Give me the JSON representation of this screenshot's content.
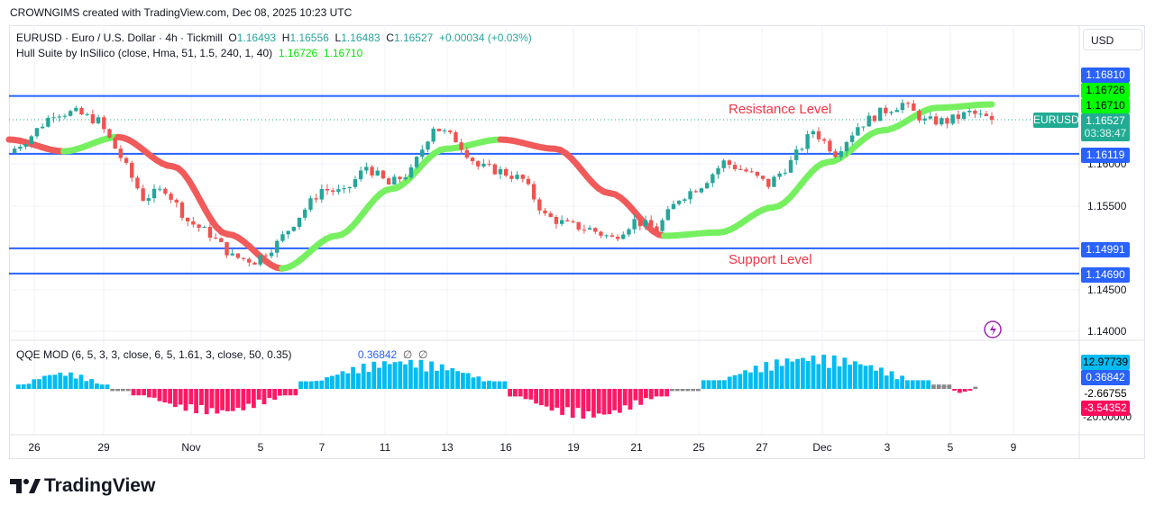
{
  "credit": "CROWNGIMS created with TradingView.com, Dec 08, 2025 10:23 UTC",
  "legend": {
    "symbol": "EURUSD · Euro / U.S. Dollar · 4h · Tickmill",
    "o_label": "O",
    "o": "1.16493",
    "h_label": "H",
    "h": "1.16556",
    "l_label": "L",
    "l": "1.16483",
    "c_label": "C",
    "c": "1.16527",
    "change": "+0.00034 (+0.03%)",
    "hull": "Hull Suite by InSilico (close, Hma, 51, 1.5, 240, 1, 40)",
    "hull_v1": "1.16726",
    "hull_v2": "1.16710"
  },
  "qqe": {
    "title": "QQE MOD (6, 5, 3, 3, close, 6, 5, 1.61, 3, close, 50, 0.35)",
    "value": "0.36842",
    "na1": "∅",
    "na2": "∅"
  },
  "currency": "USD",
  "annotations": {
    "resistance": "Resistance Level",
    "support": "Support Level"
  },
  "price_tags": {
    "r1": "1.16810",
    "hull1": "1.16726",
    "hull2": "1.16710",
    "symbol": "EURUSD",
    "last": "1.16527",
    "countdown": "03:38:47",
    "r2": "1.16119",
    "s1": "1.14991",
    "s2": "1.14690"
  },
  "price_axis": [
    "1.16000",
    "1.15500",
    "1.14500",
    "1.14000"
  ],
  "qqe_tags": {
    "a": "12.97739",
    "b": "0.36842",
    "c": "-2.66755",
    "d": "-3.54352",
    "e": "-20.00000"
  },
  "time_axis": [
    "26",
    "29",
    "Nov",
    "5",
    "7",
    "11",
    "13",
    "16",
    "19",
    "21",
    "25",
    "27",
    "Dec",
    "3",
    "5",
    "9"
  ],
  "brand": "TradingView",
  "colors": {
    "up": "#26a69a",
    "down": "#ef5350",
    "level": "#2962ff",
    "hull_up": "#76f060",
    "hull_down": "#f05a5a",
    "qqe_up": "#00bcf2",
    "qqe_down": "#ff1a66",
    "qqe_neutral": "#888888",
    "last": "#22ab94"
  },
  "chart_data": {
    "type": "candlestick",
    "symbol": "EURUSD",
    "timeframe": "4h",
    "ylim": [
      1.1385,
      1.1735
    ],
    "levels": [
      1.1681,
      1.16119,
      1.14991,
      1.1469
    ],
    "close_path": [
      1.1613,
      1.1634,
      1.1661,
      1.1661,
      1.1651,
      1.1608,
      1.1559,
      1.157,
      1.1532,
      1.1516,
      1.1489,
      1.1484,
      1.1505,
      1.1538,
      1.157,
      1.1565,
      1.1597,
      1.1575,
      1.1591,
      1.1645,
      1.1629,
      1.1597,
      1.1591,
      1.1581,
      1.1538,
      1.1527,
      1.1522,
      1.1511,
      1.1532,
      1.1522,
      1.1559,
      1.1575,
      1.1602,
      1.1591,
      1.1575,
      1.1602,
      1.164,
      1.1613,
      1.1645,
      1.1661,
      1.1672,
      1.1651,
      1.1651,
      1.1661,
      1.16527
    ],
    "hull_path": [
      1.1629,
      1.1615,
      1.1632,
      1.1597,
      1.1516,
      1.1475,
      1.1514,
      1.157,
      1.1618,
      1.1629,
      1.1618,
      1.1565,
      1.1514,
      1.1518,
      1.1548,
      1.1602,
      1.164,
      1.1667,
      1.1671
    ],
    "qqe_segments": [
      {
        "bars": 18,
        "peak": 8,
        "color": "up"
      },
      {
        "bars": 4,
        "peak": -1,
        "color": "neutral"
      },
      {
        "bars": 32,
        "peak": -12,
        "color": "down"
      },
      {
        "bars": 40,
        "peak": 14,
        "color": "up"
      },
      {
        "bars": 31,
        "peak": -14,
        "color": "down"
      },
      {
        "bars": 6,
        "peak": -1,
        "color": "neutral"
      },
      {
        "bars": 44,
        "peak": 16,
        "color": "up"
      },
      {
        "bars": 4,
        "peak": 2,
        "color": "neutral"
      },
      {
        "bars": 4,
        "peak": -2,
        "color": "down"
      },
      {
        "bars": 1,
        "peak": 1,
        "color": "neutral"
      }
    ]
  }
}
